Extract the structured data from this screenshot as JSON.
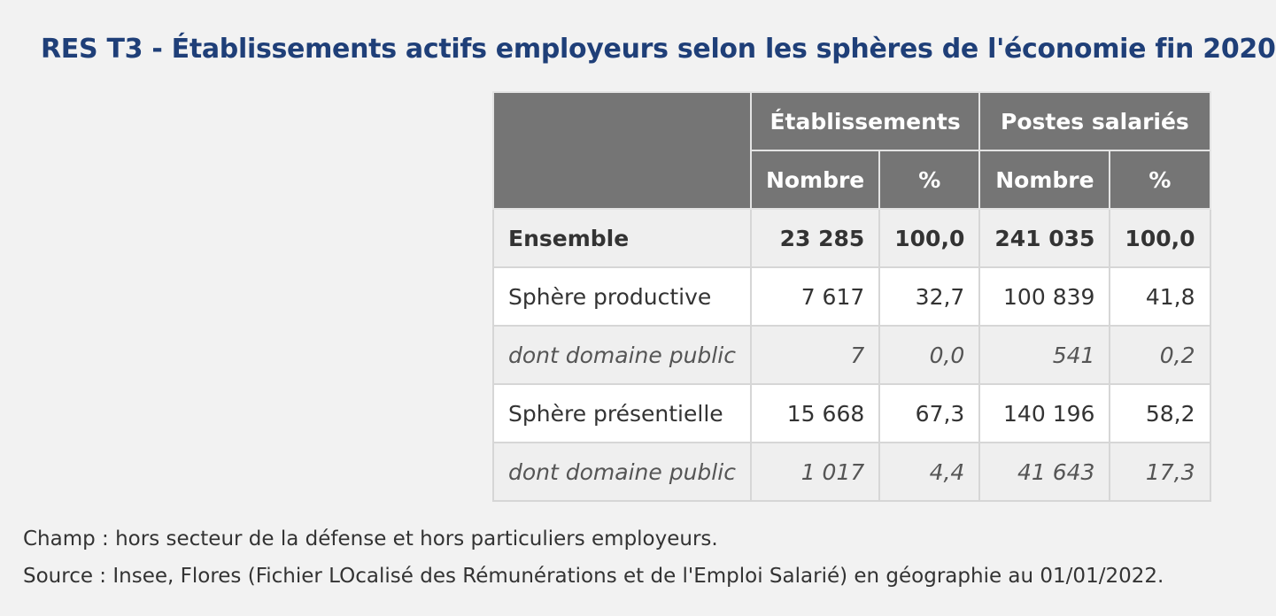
{
  "title": "RES T3 - Établissements actifs employeurs selon les sphères de l'économie fin 2020",
  "table": {
    "group_headers": [
      "Établissements",
      "Postes salariés"
    ],
    "sub_headers": [
      "Nombre",
      "%",
      "Nombre",
      "%"
    ],
    "rows": [
      {
        "label": "Ensemble",
        "values": [
          "23 285",
          "100,0",
          "241 035",
          "100,0"
        ]
      },
      {
        "label": "Sphère productive",
        "values": [
          "7 617",
          "32,7",
          "100 839",
          "41,8"
        ]
      },
      {
        "label": "dont domaine public",
        "values": [
          "7",
          "0,0",
          "541",
          "0,2"
        ]
      },
      {
        "label": "Sphère présentielle",
        "values": [
          "15 668",
          "67,3",
          "140 196",
          "58,2"
        ]
      },
      {
        "label": "dont domaine public",
        "values": [
          "1 017",
          "4,4",
          "41 643",
          "17,3"
        ]
      }
    ]
  },
  "notes": {
    "champ": "Champ : hors secteur de la défense et hors particuliers employeurs.",
    "source": "Source : Insee, Flores (Fichier LOcalisé des Rémunérations et de l'Emploi Salarié) en géographie au 01/01/2022."
  }
}
